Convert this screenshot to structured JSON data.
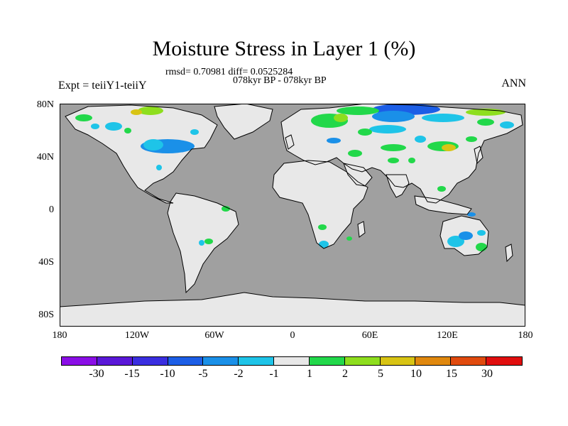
{
  "title": "Moisture Stress in Layer 1 (%)",
  "stats": "rmsd= 0.70981 diff= 0.0525284",
  "period": "078kyr BP - 078kyr BP",
  "experiment": "Expt = teiiY1-teiiY",
  "season": "ANN",
  "lat_labels": [
    "80N",
    "40N",
    "0",
    "40S",
    "80S"
  ],
  "lon_labels": [
    "180",
    "120W",
    "60W",
    "0",
    "60E",
    "120E",
    "180"
  ],
  "colorbar": {
    "labels": [
      "-30",
      "-15",
      "-10",
      "-5",
      "-2",
      "-1",
      "1",
      "2",
      "5",
      "10",
      "15",
      "30"
    ],
    "colors": [
      "#8a0ee6",
      "#5a18d8",
      "#3a2ee0",
      "#1c5ee6",
      "#1a90e8",
      "#1ec4e8",
      "#e8e8e8",
      "#22d84a",
      "#8ede1e",
      "#d8c414",
      "#e0880e",
      "#e04a0e",
      "#e00e0e"
    ]
  },
  "map_colors": {
    "ocean": "#a0a0a0",
    "land": "#e8e8e8",
    "coast": "#000000"
  }
}
